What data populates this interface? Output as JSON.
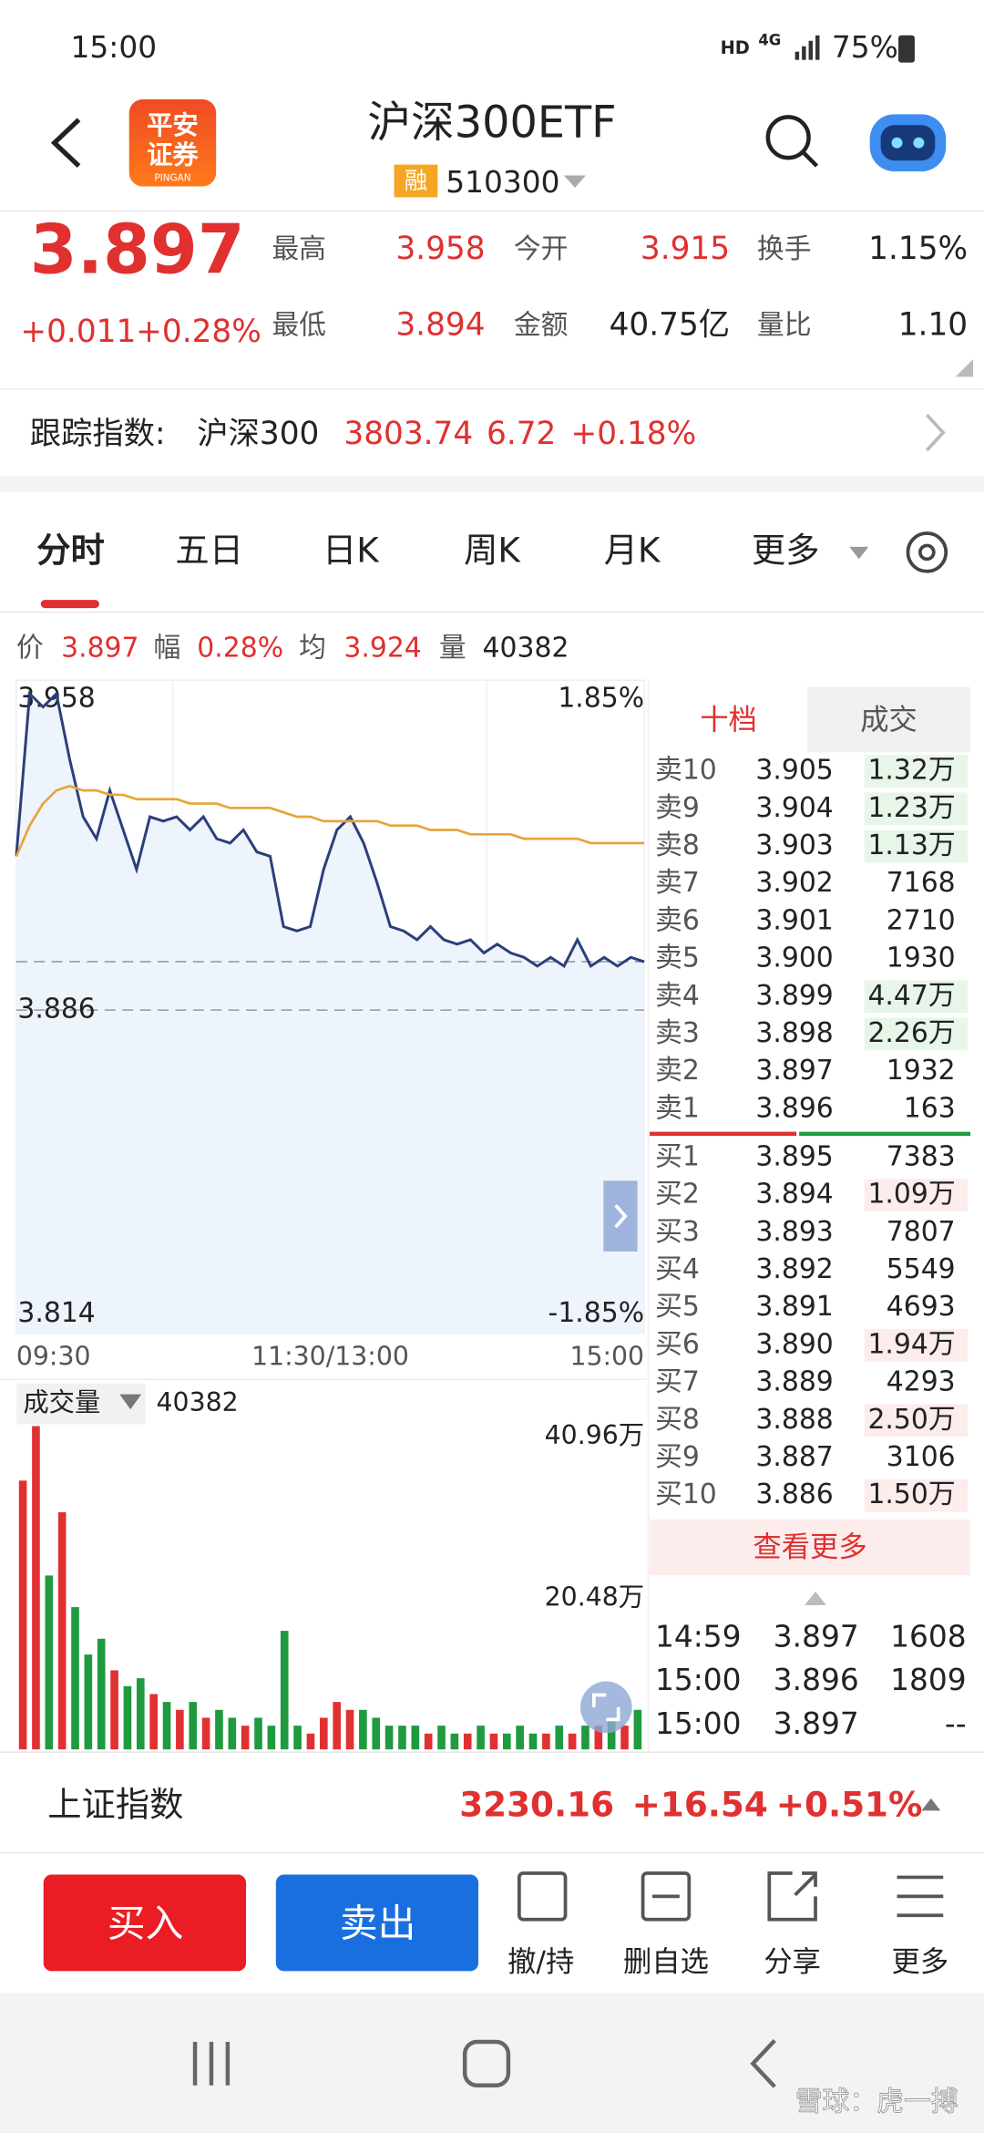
{
  "status_bar": {
    "time": "15:00",
    "network": "HD",
    "signal": "4G",
    "battery": "75%"
  },
  "header": {
    "logo": [
      "平安",
      "证券"
    ],
    "logo_sub": "PINGAN",
    "title": "沪深300ETF",
    "badge": "融",
    "code": "510300"
  },
  "quote": {
    "price": "3.897",
    "change": "+0.011",
    "change_pct": "+0.28%",
    "fields": [
      {
        "label": "最高",
        "value": "3.958"
      },
      {
        "label": "今开",
        "value": "3.915"
      },
      {
        "label": "换手",
        "value": "1.15%"
      },
      {
        "label": "最低",
        "value": "3.894"
      },
      {
        "label": "金额",
        "value": "40.75亿"
      },
      {
        "label": "量比",
        "value": "1.10"
      }
    ]
  },
  "tracking": {
    "label": "跟踪指数:",
    "name": "沪深300",
    "value": "3803.74",
    "change": "6.72",
    "change_pct": "+0.18%"
  },
  "tabs": [
    "分时",
    "五日",
    "日K",
    "周K",
    "月K",
    "更多"
  ],
  "info": [
    {
      "label": "价",
      "value": "3.897"
    },
    {
      "label": "幅",
      "value": "0.28%"
    },
    {
      "label": "均",
      "value": "3.924"
    },
    {
      "label": "量",
      "value": "40382"
    }
  ],
  "chart_data": [
    {
      "type": "line",
      "xlim": [
        0,
        47
      ],
      "xticks": [
        {
          "value": 0,
          "label": "09:30"
        },
        {
          "value": 23.5,
          "label": "11:30/13:00"
        },
        {
          "value": 47,
          "label": "15:00"
        }
      ],
      "ylim": [
        3.814,
        3.958
      ],
      "yticks": [
        3.958,
        3.886,
        3.814
      ],
      "y2lim": [
        -1.85,
        1.85
      ],
      "y2ticks": [
        {
          "value": 1.85,
          "label": "1.85%"
        },
        {
          "value": -1.85,
          "label": "-1.85%"
        }
      ],
      "series": [
        {
          "color": "#2b3f7a",
          "values": [
            3.921,
            3.958,
            3.955,
            3.958,
            3.943,
            3.93,
            3.925,
            3.936,
            3.927,
            3.918,
            3.93,
            3.929,
            3.93,
            3.927,
            3.93,
            3.925,
            3.924,
            3.927,
            3.922,
            3.921,
            3.905,
            3.904,
            3.905,
            3.918,
            3.927,
            3.93,
            3.924,
            3.915,
            3.905,
            3.904,
            3.902,
            3.905,
            3.902,
            3.901,
            3.902,
            3.899,
            3.901,
            3.899,
            3.898,
            3.896,
            3.898,
            3.896,
            3.902,
            3.896,
            3.898,
            3.896,
            3.898,
            3.897
          ]
        },
        {
          "color": "#e8a43a",
          "values": [
            3.921,
            3.928,
            3.933,
            3.936,
            3.937,
            3.936,
            3.936,
            3.935,
            3.935,
            3.934,
            3.934,
            3.934,
            3.934,
            3.933,
            3.933,
            3.933,
            3.932,
            3.932,
            3.932,
            3.932,
            3.931,
            3.93,
            3.93,
            3.929,
            3.929,
            3.929,
            3.929,
            3.929,
            3.928,
            3.928,
            3.928,
            3.927,
            3.927,
            3.927,
            3.926,
            3.926,
            3.926,
            3.926,
            3.925,
            3.925,
            3.925,
            3.925,
            3.925,
            3.924,
            3.924,
            3.924,
            3.924,
            3.924
          ]
        }
      ]
    },
    {
      "type": "bar",
      "label": "成交量",
      "value_label": "40382",
      "ylim": [
        0,
        40.96
      ],
      "yticks": [
        {
          "value": 40.96,
          "label": "40.96万"
        },
        {
          "value": 20.48,
          "label": "20.48万"
        }
      ],
      "colors": {
        "up": "#e03030",
        "down": "#1f9a3f"
      },
      "values": [
        34,
        40.9,
        22,
        30,
        18,
        12,
        14,
        10,
        8,
        9,
        7,
        6,
        5,
        6,
        4,
        5,
        4,
        3,
        4,
        3,
        15,
        3,
        2,
        4,
        6,
        5,
        5,
        4,
        3,
        3,
        3,
        2,
        3,
        2,
        2,
        3,
        2,
        2,
        3,
        2,
        2,
        3,
        2,
        3,
        3,
        4,
        3,
        5
      ]
    }
  ],
  "order_book": {
    "tabs": [
      "十档",
      "成交"
    ],
    "asks": [
      {
        "label": "卖10",
        "price": "3.905",
        "volume": "1.32万"
      },
      {
        "label": "卖9",
        "price": "3.904",
        "volume": "1.23万"
      },
      {
        "label": "卖8",
        "price": "3.903",
        "volume": "1.13万"
      },
      {
        "label": "卖7",
        "price": "3.902",
        "volume": "7168"
      },
      {
        "label": "卖6",
        "price": "3.901",
        "volume": "2710"
      },
      {
        "label": "卖5",
        "price": "3.900",
        "volume": "1930"
      },
      {
        "label": "卖4",
        "price": "3.899",
        "volume": "4.47万"
      },
      {
        "label": "卖3",
        "price": "3.898",
        "volume": "2.26万"
      },
      {
        "label": "卖2",
        "price": "3.897",
        "volume": "1932"
      },
      {
        "label": "卖1",
        "price": "3.896",
        "volume": "163"
      }
    ],
    "bids": [
      {
        "label": "买1",
        "price": "3.895",
        "volume": "7383"
      },
      {
        "label": "买2",
        "price": "3.894",
        "volume": "1.09万"
      },
      {
        "label": "买3",
        "price": "3.893",
        "volume": "7807"
      },
      {
        "label": "买4",
        "price": "3.892",
        "volume": "5549"
      },
      {
        "label": "买5",
        "price": "3.891",
        "volume": "4693"
      },
      {
        "label": "买6",
        "price": "3.890",
        "volume": "1.94万"
      },
      {
        "label": "买7",
        "price": "3.889",
        "volume": "4293"
      },
      {
        "label": "买8",
        "price": "3.888",
        "volume": "2.50万"
      },
      {
        "label": "买9",
        "price": "3.887",
        "volume": "3106"
      },
      {
        "label": "买10",
        "price": "3.886",
        "volume": "1.50万"
      }
    ],
    "more": "查看更多",
    "trades": [
      {
        "time": "14:59",
        "price": "3.897",
        "volume": "1608",
        "color": "#e03030"
      },
      {
        "time": "15:00",
        "price": "3.896",
        "volume": "1809",
        "color": "#1f9a3f"
      },
      {
        "time": "15:00",
        "price": "3.897",
        "volume": "--",
        "color": "#1f9a3f"
      }
    ]
  },
  "index_bar": {
    "name": "上证指数",
    "value": "3230.16",
    "change": "+16.54",
    "change_pct": "+0.51%"
  },
  "actions": {
    "buy": "买入",
    "sell": "卖出",
    "tools": [
      "撤/持",
      "删自选",
      "分享",
      "更多"
    ]
  },
  "watermark": "雪球：虎一搏"
}
